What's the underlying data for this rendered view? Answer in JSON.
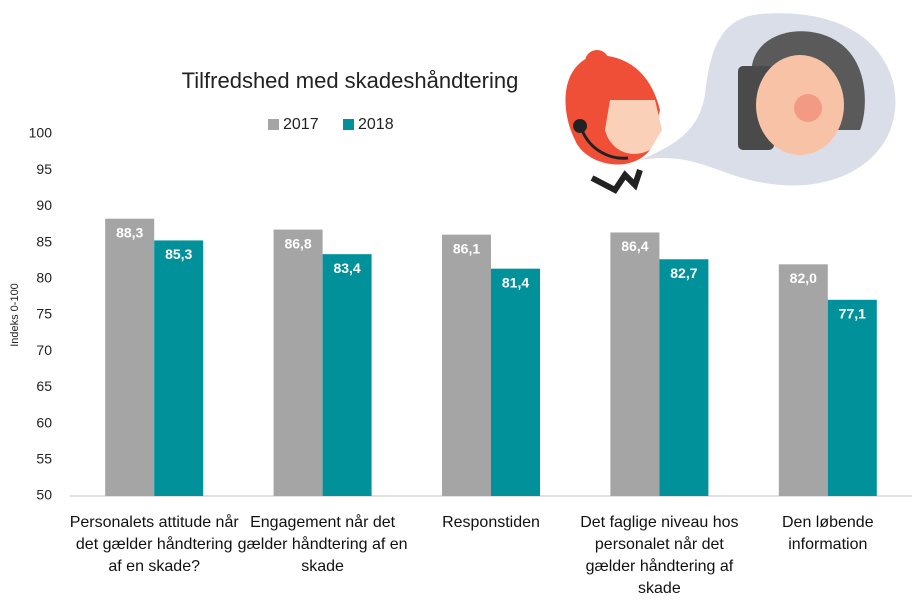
{
  "chart_data": {
    "type": "bar",
    "title": "Tilfredshed med skadeshåndtering",
    "y_label": "Indeks 0-100",
    "categories": [
      "Personalets attitude når det gælder håndtering af en skade?",
      "Engagement når det gælder håndtering af en skade",
      "Responstiden",
      "Det faglige niveau hos personalet når det gælder håndtering af skade",
      "Den løbende information"
    ],
    "series": [
      {
        "name": "2017",
        "color": "#a5a5a5",
        "values": [
          88.3,
          86.8,
          86.1,
          86.4,
          82.0
        ],
        "value_labels": [
          "88,3",
          "86,8",
          "86,1",
          "86,4",
          "82,0"
        ]
      },
      {
        "name": "2018",
        "color": "#00919b",
        "values": [
          85.3,
          83.4,
          81.4,
          82.7,
          77.1
        ],
        "value_labels": [
          "85,3",
          "83,4",
          "81,4",
          "82,7",
          "77,1"
        ]
      }
    ],
    "ylim": [
      50,
      100
    ],
    "yticks": [
      50,
      55,
      60,
      65,
      70,
      75,
      80,
      85,
      90,
      95,
      100
    ],
    "grid": false
  }
}
